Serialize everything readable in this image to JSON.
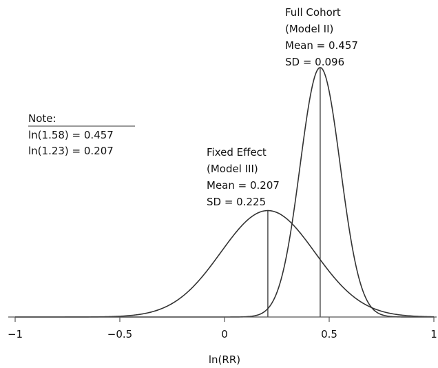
{
  "chart_data": {
    "type": "line",
    "xlabel": "ln(RR)",
    "xlim": [
      -1,
      1
    ],
    "x_ticks": [
      -1,
      -0.5,
      0,
      0.5,
      1
    ],
    "x_tick_labels": [
      "−1",
      "−0.5",
      "0",
      "0.5",
      "1"
    ],
    "y_axis_visible": false,
    "grid": false,
    "series": [
      {
        "name": "Full Cohort",
        "distribution": "normal",
        "mean": 0.457,
        "sd": 0.096,
        "annotation_lines": [
          "Full Cohort",
          "(Model II)",
          "Mean = 0.457",
          "SD = 0.096"
        ]
      },
      {
        "name": "Fixed Effect",
        "distribution": "normal",
        "mean": 0.207,
        "sd": 0.225,
        "annotation_lines": [
          "Fixed Effect",
          "(Model III)",
          "Mean = 0.207",
          "SD = 0.225"
        ]
      }
    ],
    "note": {
      "heading": "Note:",
      "lines": [
        "ln(1.58) = 0.457",
        "ln(1.23) = 0.207"
      ]
    }
  }
}
